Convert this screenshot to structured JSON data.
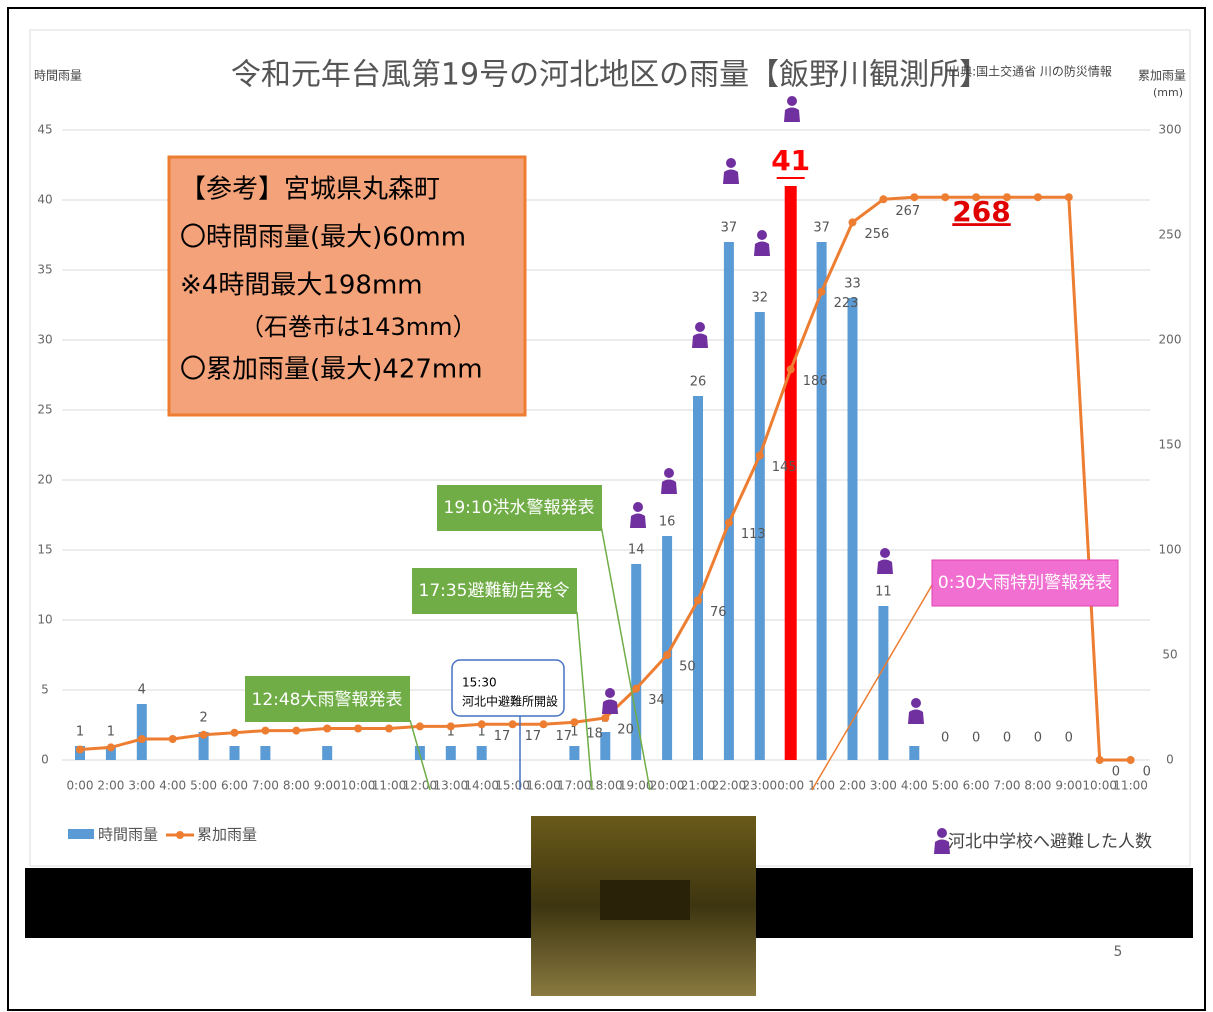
{
  "chart_data": {
    "type": "bar-line",
    "title": "令和元年台風第19号の河北地区の雨量【飯野川観測所】",
    "source": "出典:国土交通省 川の防災情報",
    "y_label": "時間雨量",
    "y2_label": "累加雨量",
    "y2_unit": "(mm)",
    "categories": [
      "0:00",
      "2:00",
      "3:00",
      "4:00",
      "5:00",
      "6:00",
      "7:00",
      "8:00",
      "9:00",
      "10:00",
      "11:00",
      "12:00",
      "13:00",
      "14:00",
      "15:00",
      "16:00",
      "17:00",
      "18:00",
      "19:00",
      "20:00",
      "21:00",
      "22:00",
      "23:00",
      "0:00",
      "1:00",
      "2:00",
      "3:00",
      "4:00",
      "5:00",
      "6:00",
      "7:00",
      "8:00",
      "9:00",
      "10:00",
      "11:00"
    ],
    "ylim": [
      0,
      45
    ],
    "yticks": [
      0,
      5,
      10,
      15,
      20,
      25,
      30,
      35,
      40,
      45
    ],
    "y2lim": [
      0,
      300
    ],
    "y2ticks": [
      0,
      50,
      100,
      150,
      200,
      250,
      300
    ],
    "grid": true,
    "legend": "bottom-left",
    "series": [
      {
        "name": "時間雨量",
        "type": "bar",
        "color": "#5b9bd5",
        "emphasis": {
          "index": 23,
          "color": "#ff0000"
        },
        "values": [
          1,
          1,
          4,
          0,
          2,
          1,
          1,
          0,
          1,
          0,
          0,
          1,
          1,
          1,
          0,
          0,
          1,
          2,
          14,
          16,
          26,
          37,
          32,
          41,
          37,
          33,
          11,
          1,
          0,
          0,
          0,
          0,
          0,
          0,
          0
        ],
        "value_labels": [
          "1",
          "1",
          "4",
          null,
          "2",
          null,
          null,
          null,
          null,
          null,
          null,
          null,
          "1",
          "1",
          null,
          null,
          "1",
          "2",
          "14",
          "16",
          "26",
          "37",
          "32",
          "41",
          "37",
          "33",
          "11",
          null,
          "0",
          "0",
          "0",
          "0",
          "0",
          null,
          null
        ]
      },
      {
        "name": "累加雨量",
        "type": "line",
        "axis": "y2",
        "color": "#ed7d31",
        "emphasis": {
          "index": 27,
          "color": "#e00000"
        },
        "values": [
          5,
          6,
          10,
          10,
          12,
          13,
          14,
          14,
          15,
          15,
          15,
          16,
          16,
          17,
          17,
          17,
          18,
          20,
          34,
          50,
          76,
          113,
          145,
          186,
          223,
          256,
          267,
          268,
          268,
          268,
          268,
          268,
          268,
          0,
          0
        ],
        "value_labels": [
          null,
          null,
          null,
          null,
          null,
          null,
          null,
          null,
          null,
          null,
          null,
          null,
          null,
          "17",
          "17",
          "17",
          "18",
          "20",
          "34",
          "50",
          "76",
          "113",
          "145",
          "186",
          "223",
          "256",
          "267",
          "268",
          null,
          null,
          null,
          null,
          null,
          "0",
          "0"
        ]
      }
    ],
    "note_box": [
      "【参考】宮城県丸森町",
      "〇時間雨量(最大)60mm",
      "※4時間最大198mm",
      "（石巻市は143mm）",
      "〇累加雨量(最大)427mm"
    ],
    "callouts": [
      "19:10洪水警報発表",
      "17:35避難勧告発令",
      "12:48大雨警報発表",
      "15:30",
      "河北中避難所開設",
      "0:30大雨特別警報発表"
    ],
    "people_legend": "河北中学校へ避難した人数",
    "page_number": "5"
  }
}
